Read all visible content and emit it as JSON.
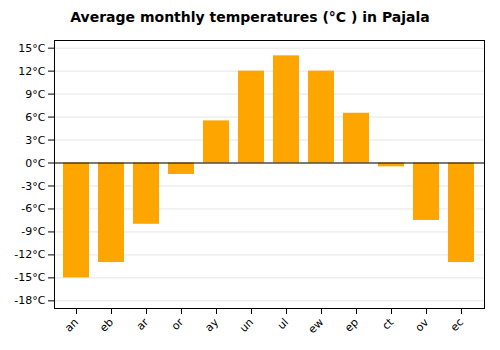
{
  "chart_data": {
    "type": "bar",
    "title": "Average monthly temperatures (°C ) in Pajala",
    "categories": [
      "an",
      "eb",
      "ar",
      "or",
      "ay",
      "un",
      "ul",
      "ew",
      "ep",
      "ct",
      "ov",
      "ec"
    ],
    "values": [
      -15,
      -13,
      -8,
      -1.5,
      5.5,
      12,
      14,
      12,
      6.5,
      -0.5,
      -7.5,
      -13
    ],
    "color": "#FFA500",
    "ylim": [
      -19,
      16
    ],
    "yticks": [
      {
        "value": -18,
        "label": "-18°C"
      },
      {
        "value": -15,
        "label": "-15°C"
      },
      {
        "value": -12,
        "label": "-12°C"
      },
      {
        "value": -9,
        "label": "-9°C"
      },
      {
        "value": -6,
        "label": "-6°C"
      },
      {
        "value": -3,
        "label": "-3°C"
      },
      {
        "value": 0,
        "label": "0°C"
      },
      {
        "value": 3,
        "label": "3°C"
      },
      {
        "value": 6,
        "label": "6°C"
      },
      {
        "value": 9,
        "label": "9°C"
      },
      {
        "value": 12,
        "label": "12°C"
      },
      {
        "value": 15,
        "label": "15°C"
      }
    ],
    "grid": true
  }
}
